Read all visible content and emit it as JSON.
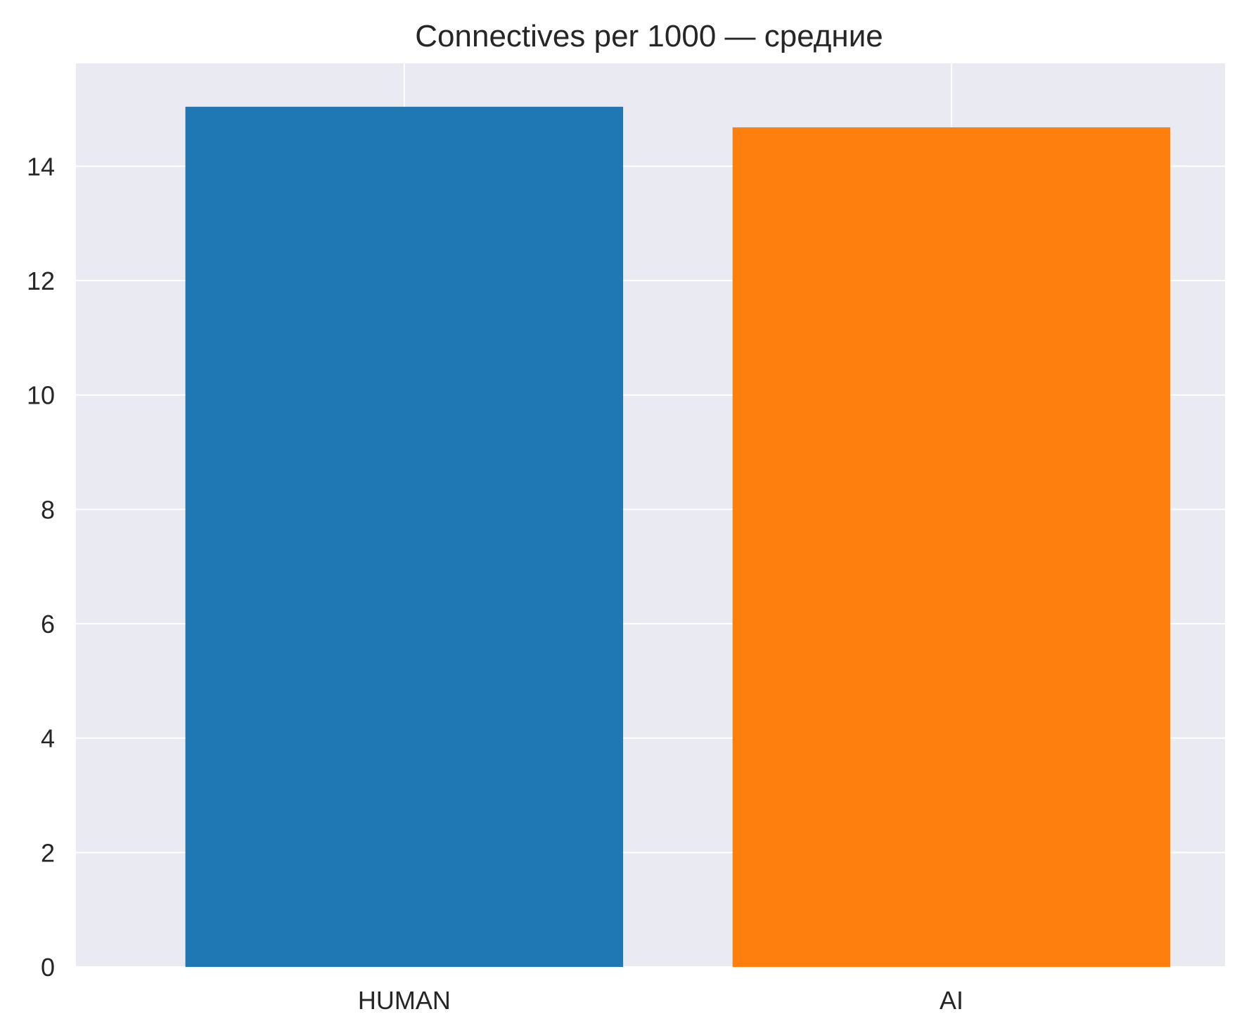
{
  "chart_data": {
    "type": "bar",
    "title": "Connectives per 1000 — средние",
    "xlabel": "",
    "ylabel": "",
    "categories": [
      "HUMAN",
      "AI"
    ],
    "values": [
      15.04,
      14.68
    ],
    "colors": [
      "#1f77b4",
      "#ff7f0e"
    ],
    "ylim": [
      0,
      15.8
    ],
    "yticks": [
      0,
      2,
      4,
      6,
      8,
      10,
      12,
      14
    ],
    "ytick_labels": [
      "0",
      "2",
      "4",
      "6",
      "8",
      "10",
      "12",
      "14"
    ],
    "grid": true,
    "legend": "none",
    "background_color": "#eaeaf2",
    "grid_color": "#ffffff"
  }
}
